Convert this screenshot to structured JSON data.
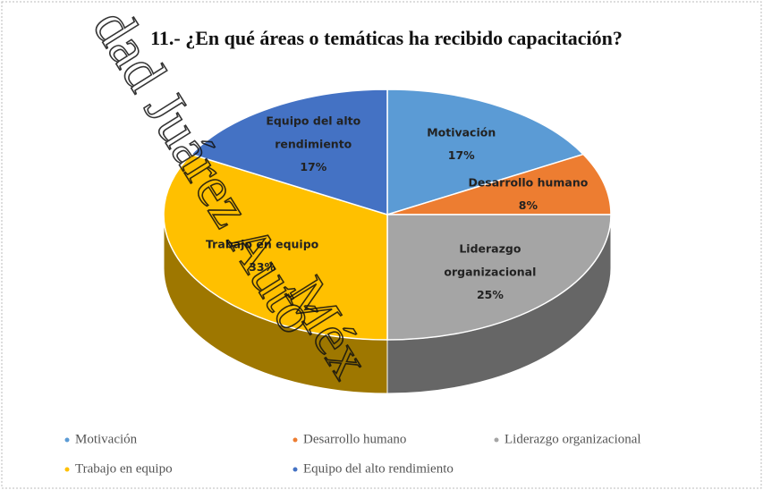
{
  "chart_data": {
    "type": "pie3d",
    "title": "11.- ¿En qué áreas o temáticas ha recibido capacitación?",
    "categories": [
      "Motivación",
      "Desarrollo humano",
      "Liderazgo organizacional",
      "Trabajo en equipo",
      "Equipo del alto rendimiento"
    ],
    "values": [
      17,
      8,
      25,
      33,
      17
    ],
    "value_labels": [
      "17%",
      "8%",
      "25%",
      "33%",
      "17%"
    ],
    "colors": [
      "#5b9bd5",
      "#ed7d31",
      "#a5a5a5",
      "#ffc000",
      "#4472c4"
    ],
    "legend": "bottom",
    "watermark": [
      "dad Juárez Autó",
      "Méx"
    ]
  }
}
